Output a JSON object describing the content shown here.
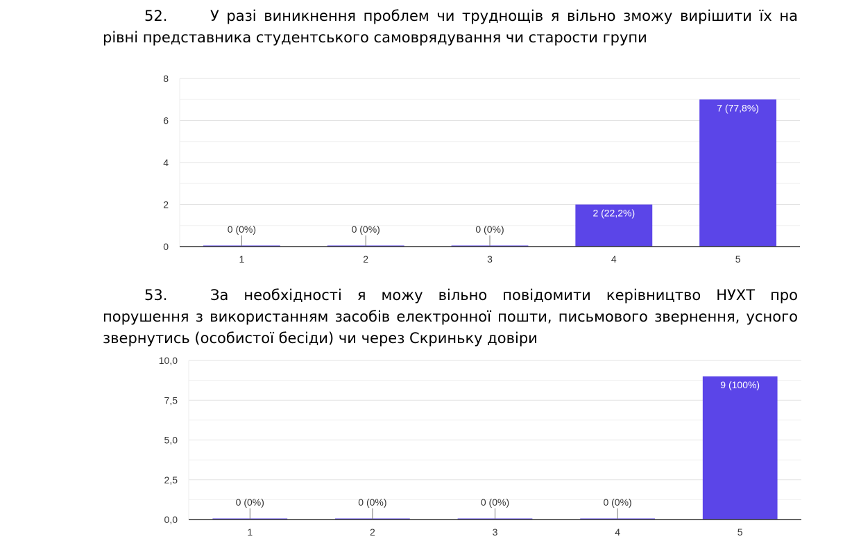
{
  "questions": [
    {
      "number": "52.",
      "text": "У разі виникнення проблем чи труднощів я вільно зможу вирішити їх на рівні представника студентського самоврядування чи старости групи"
    },
    {
      "number": "53.",
      "text": "За необхідності я можу вільно повідомити керівництво НУХТ про порушення з використанням засобів електронної пошти, письмового звернення, усного звернутись (особистої бесіди) чи через Скриньку довіри"
    }
  ],
  "colors": {
    "bar": "#5b45e8",
    "grid": "#e3e3e3",
    "axis": "#333333"
  },
  "chart_data": [
    {
      "type": "bar",
      "title": "",
      "categories": [
        "1",
        "2",
        "3",
        "4",
        "5"
      ],
      "values": [
        0,
        0,
        0,
        2,
        7
      ],
      "data_labels": [
        "0 (0%)",
        "0 (0%)",
        "0 (0%)",
        "2 (22,2%)",
        "7 (77,8%)"
      ],
      "ylim": [
        0,
        8
      ],
      "yticks": [
        0,
        2,
        4,
        6,
        8
      ],
      "ytick_labels": [
        "0",
        "2",
        "4",
        "6",
        "8"
      ],
      "grid": true
    },
    {
      "type": "bar",
      "title": "",
      "categories": [
        "1",
        "2",
        "3",
        "4",
        "5"
      ],
      "values": [
        0,
        0,
        0,
        0,
        9
      ],
      "data_labels": [
        "0 (0%)",
        "0 (0%)",
        "0 (0%)",
        "0 (0%)",
        "9 (100%)"
      ],
      "ylim": [
        0,
        10
      ],
      "yticks": [
        0,
        2.5,
        5,
        7.5,
        10
      ],
      "ytick_labels": [
        "0,0",
        "2,5",
        "5,0",
        "7,5",
        "10,0"
      ],
      "grid": true
    }
  ]
}
